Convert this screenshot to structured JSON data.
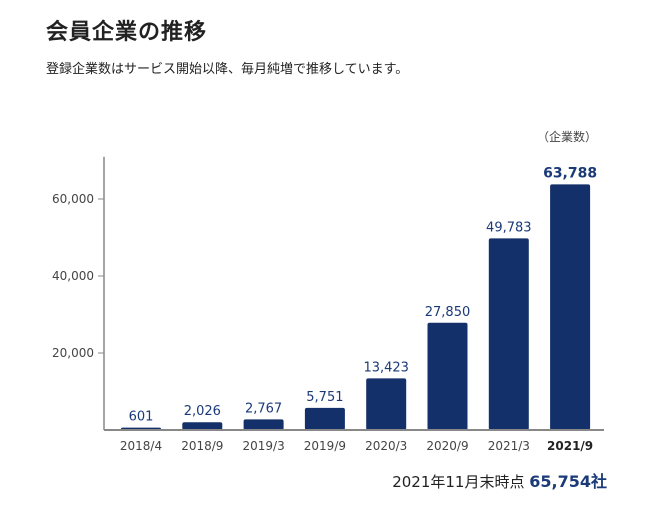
{
  "title": "会員企業の推移",
  "subtitle": "登録企業数はサービス開始以降、毎月純増で推移しています。",
  "chart_data": {
    "type": "bar",
    "unit_label": "（企業数）",
    "categories": [
      "2018/4",
      "2018/9",
      "2019/3",
      "2019/9",
      "2020/3",
      "2020/9",
      "2021/3",
      "2021/9"
    ],
    "values": [
      601,
      2026,
      2767,
      5751,
      13423,
      27850,
      49783,
      63788
    ],
    "value_labels": [
      "601",
      "2,026",
      "2,767",
      "5,751",
      "13,423",
      "27,850",
      "49,783",
      "63,788"
    ],
    "highlight_index": 7,
    "ylim": [
      0,
      72000
    ],
    "yticks": [
      20000,
      40000,
      60000
    ],
    "ytick_labels": [
      "20,000",
      "40,000",
      "60,000"
    ],
    "bar_color": "#13306b",
    "axis_color": "#888888",
    "label_color": "#1a3a78"
  },
  "footer": {
    "prefix": "2021年11月末時点",
    "value": "65,754社"
  }
}
